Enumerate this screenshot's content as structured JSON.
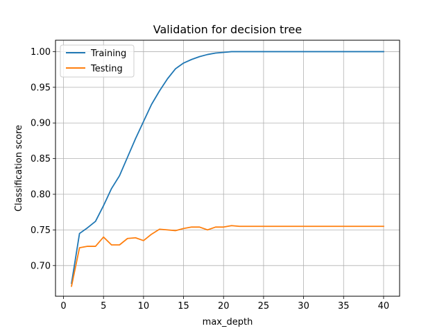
{
  "chart_data": {
    "type": "line",
    "title": "Validation for decision tree",
    "xlabel": "max_depth",
    "ylabel": "Classification score",
    "xlim": [
      -1,
      42
    ],
    "ylim": [
      0.657,
      1.016
    ],
    "xticks": [
      0,
      5,
      10,
      15,
      20,
      25,
      30,
      35,
      40
    ],
    "xtick_labels": [
      "0",
      "5",
      "10",
      "15",
      "20",
      "25",
      "30",
      "35",
      "40"
    ],
    "yticks": [
      0.7,
      0.75,
      0.8,
      0.85,
      0.9,
      0.95,
      1.0
    ],
    "ytick_labels": [
      "0.70",
      "0.75",
      "0.80",
      "0.85",
      "0.90",
      "0.95",
      "1.00"
    ],
    "grid": true,
    "legend_position": "top-left",
    "x": [
      1,
      2,
      3,
      4,
      5,
      6,
      7,
      8,
      9,
      10,
      11,
      12,
      13,
      14,
      15,
      16,
      17,
      18,
      19,
      20,
      21,
      22,
      23,
      24,
      25,
      26,
      27,
      28,
      29,
      30,
      31,
      32,
      33,
      34,
      35,
      36,
      37,
      38,
      39,
      40
    ],
    "series": [
      {
        "name": "Training",
        "color": "#1f77b4",
        "values": [
          0.675,
          0.745,
          0.753,
          0.762,
          0.784,
          0.808,
          0.826,
          0.852,
          0.878,
          0.902,
          0.926,
          0.945,
          0.962,
          0.976,
          0.984,
          0.989,
          0.993,
          0.996,
          0.998,
          0.999,
          1.0,
          1.0,
          1.0,
          1.0,
          1.0,
          1.0,
          1.0,
          1.0,
          1.0,
          1.0,
          1.0,
          1.0,
          1.0,
          1.0,
          1.0,
          1.0,
          1.0,
          1.0,
          1.0,
          1.0
        ]
      },
      {
        "name": "Testing",
        "color": "#ff7f0e",
        "values": [
          0.671,
          0.725,
          0.727,
          0.727,
          0.74,
          0.729,
          0.729,
          0.738,
          0.739,
          0.735,
          0.744,
          0.751,
          0.75,
          0.749,
          0.752,
          0.754,
          0.754,
          0.75,
          0.754,
          0.754,
          0.756,
          0.755,
          0.755,
          0.755,
          0.755,
          0.755,
          0.755,
          0.755,
          0.755,
          0.755,
          0.755,
          0.755,
          0.755,
          0.755,
          0.755,
          0.755,
          0.755,
          0.755,
          0.755,
          0.755
        ]
      }
    ]
  }
}
